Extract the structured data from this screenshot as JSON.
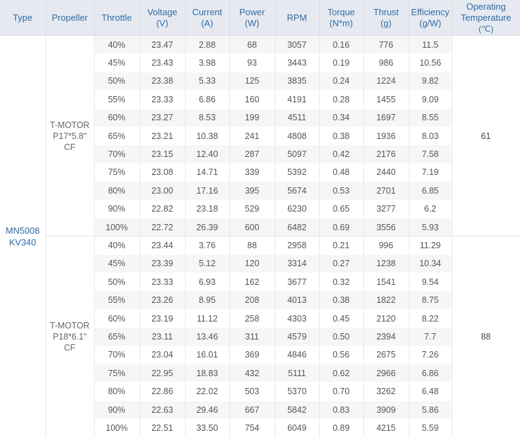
{
  "headers": [
    {
      "line1": "Type",
      "line2": ""
    },
    {
      "line1": "Propeller",
      "line2": ""
    },
    {
      "line1": "Throttle",
      "line2": ""
    },
    {
      "line1": "Voltage",
      "line2": "(V)"
    },
    {
      "line1": "Current",
      "line2": "(A)"
    },
    {
      "line1": "Power",
      "line2": "(W)"
    },
    {
      "line1": "RPM",
      "line2": ""
    },
    {
      "line1": "Torque",
      "line2": "(N*m)"
    },
    {
      "line1": "Thrust",
      "line2": "(g)"
    },
    {
      "line1": "Efficiency",
      "line2": "(g/W)"
    },
    {
      "line1": "Operating",
      "line2": "Temperature",
      "line3": "(℃)"
    }
  ],
  "motor_type": {
    "line1": "MN5008",
    "line2": "KV340"
  },
  "groups": [
    {
      "propeller_line1": "T-MOTOR",
      "propeller_line2": "P17*5.8\" CF",
      "temperature": "61",
      "rows": [
        [
          "40%",
          "23.47",
          "2.88",
          "68",
          "3057",
          "0.16",
          "776",
          "11.5"
        ],
        [
          "45%",
          "23.43",
          "3.98",
          "93",
          "3443",
          "0.19",
          "986",
          "10.56"
        ],
        [
          "50%",
          "23.38",
          "5.33",
          "125",
          "3835",
          "0.24",
          "1224",
          "9.82"
        ],
        [
          "55%",
          "23.33",
          "6.86",
          "160",
          "4191",
          "0.28",
          "1455",
          "9.09"
        ],
        [
          "60%",
          "23.27",
          "8.53",
          "199",
          "4511",
          "0.34",
          "1697",
          "8.55"
        ],
        [
          "65%",
          "23.21",
          "10.38",
          "241",
          "4808",
          "0.38",
          "1936",
          "8.03"
        ],
        [
          "70%",
          "23.15",
          "12.40",
          "287",
          "5097",
          "0.42",
          "2176",
          "7.58"
        ],
        [
          "75%",
          "23.08",
          "14.71",
          "339",
          "5392",
          "0.48",
          "2440",
          "7.19"
        ],
        [
          "80%",
          "23.00",
          "17.16",
          "395",
          "5674",
          "0.53",
          "2701",
          "6.85"
        ],
        [
          "90%",
          "22.82",
          "23.18",
          "529",
          "6230",
          "0.65",
          "3277",
          "6.2"
        ],
        [
          "100%",
          "22.72",
          "26.39",
          "600",
          "6482",
          "0.69",
          "3556",
          "5.93"
        ]
      ]
    },
    {
      "propeller_line1": "T-MOTOR",
      "propeller_line2": "P18*6.1\" CF",
      "temperature": "88",
      "rows": [
        [
          "40%",
          "23.44",
          "3.76",
          "88",
          "2958",
          "0.21",
          "996",
          "11.29"
        ],
        [
          "45%",
          "23.39",
          "5.12",
          "120",
          "3314",
          "0.27",
          "1238",
          "10.34"
        ],
        [
          "50%",
          "23.33",
          "6.93",
          "162",
          "3677",
          "0.32",
          "1541",
          "9.54"
        ],
        [
          "55%",
          "23.26",
          "8.95",
          "208",
          "4013",
          "0.38",
          "1822",
          "8.75"
        ],
        [
          "60%",
          "23.19",
          "11.12",
          "258",
          "4303",
          "0.45",
          "2120",
          "8.22"
        ],
        [
          "65%",
          "23.11",
          "13.46",
          "311",
          "4579",
          "0.50",
          "2394",
          "7.7"
        ],
        [
          "70%",
          "23.04",
          "16.01",
          "369",
          "4846",
          "0.56",
          "2675",
          "7.26"
        ],
        [
          "75%",
          "22.95",
          "18.83",
          "432",
          "5111",
          "0.62",
          "2966",
          "6.86"
        ],
        [
          "80%",
          "22.86",
          "22.02",
          "503",
          "5370",
          "0.70",
          "3262",
          "6.48"
        ],
        [
          "90%",
          "22.63",
          "29.46",
          "667",
          "5842",
          "0.83",
          "3909",
          "5.86"
        ],
        [
          "100%",
          "22.51",
          "33.50",
          "754",
          "6049",
          "0.89",
          "4215",
          "5.59"
        ]
      ]
    }
  ]
}
